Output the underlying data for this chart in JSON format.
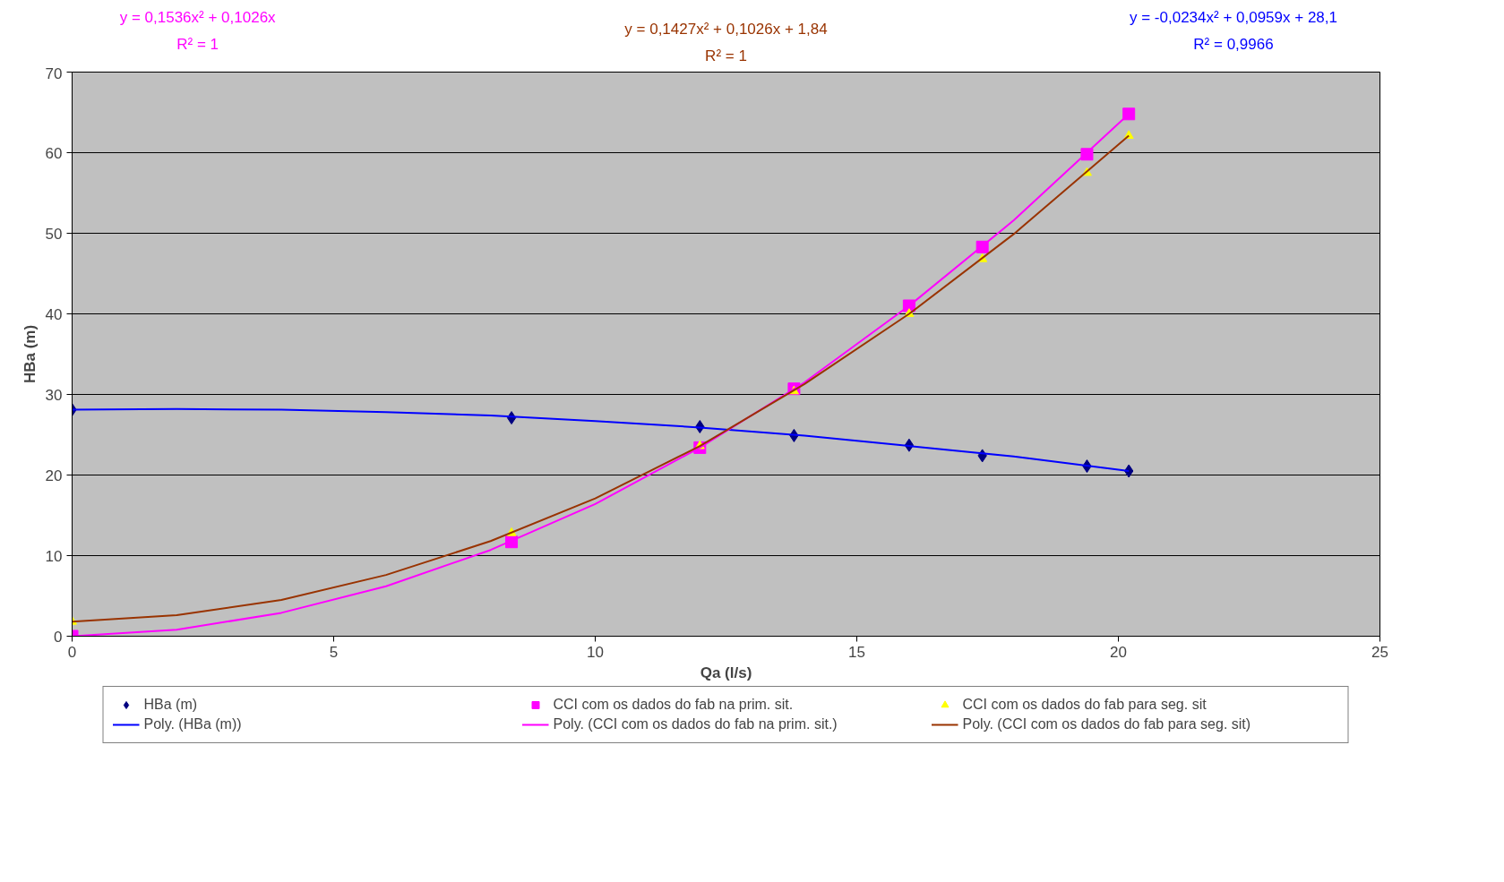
{
  "chart_data": {
    "type": "scatter",
    "xlabel": "Qa (l/s)",
    "ylabel": "HBa (m)",
    "xlim": [
      0,
      25
    ],
    "xticks": [
      0,
      5,
      10,
      15,
      20,
      25
    ],
    "ylim": [
      0,
      70
    ],
    "yticks": [
      0,
      10,
      20,
      30,
      40,
      50,
      60,
      70
    ],
    "grid": "y",
    "legend": "bottom",
    "x": [
      0,
      8.4,
      12,
      13.8,
      16,
      17.4,
      19.4,
      20.2
    ],
    "series": [
      {
        "name": "HBa (m)",
        "marker": "diamond",
        "color": "#000080",
        "values": [
          28.1,
          27.1,
          26.0,
          24.9,
          23.7,
          22.4,
          21.1,
          20.5
        ]
      },
      {
        "name": "CCI com os dados do fab na prim. sit.",
        "marker": "square",
        "color": "#ff00ff",
        "values": [
          0,
          11.7,
          23.4,
          30.7,
          41.0,
          48.3,
          59.8,
          64.8
        ]
      },
      {
        "name": "CCI com os dados do fab para seg. sit",
        "marker": "triangle",
        "color": "#ffff00",
        "values": [
          1.8,
          12.8,
          23.6,
          30.4,
          40.0,
          46.8,
          57.5,
          62.1
        ]
      },
      {
        "name": "Poly. (HBa (m))",
        "type": "line",
        "marker": "none",
        "color": "#0000ff",
        "x": [
          0,
          2,
          4,
          6,
          8,
          10,
          12,
          14,
          16,
          18,
          20.2
        ],
        "values": [
          28.1,
          28.2,
          28.1,
          27.8,
          27.4,
          26.7,
          25.9,
          24.9,
          23.6,
          22.3,
          20.5
        ]
      },
      {
        "name": "Poly. (CCI com os dados do fab na prim. sit.)",
        "type": "line",
        "marker": "none",
        "color": "#ff00ff",
        "x": [
          0,
          2,
          4,
          6,
          8,
          10,
          12,
          14,
          16,
          18,
          20.2
        ],
        "values": [
          0,
          0.8,
          2.9,
          6.2,
          10.7,
          16.4,
          23.4,
          31.5,
          41.0,
          51.6,
          64.8
        ]
      },
      {
        "name": "Poly. (CCI com os dados do fab para seg. sit)",
        "type": "line",
        "marker": "none",
        "color": "#993300",
        "x": [
          0,
          2,
          4,
          6,
          8,
          10,
          12,
          14,
          16,
          18,
          20.2
        ],
        "values": [
          1.8,
          2.6,
          4.5,
          7.6,
          11.8,
          17.1,
          23.6,
          31.3,
          40.0,
          49.9,
          62.1
        ]
      }
    ],
    "annotations": [
      "y = -0,0234x² + 0,0959x + 28,1",
      "R² = 0,9966",
      "y = 0,1536x² + 0,1026x",
      "R² = 1",
      "y = 0,1427x² + 0,1026x + 1,84",
      "R² = 1"
    ]
  }
}
